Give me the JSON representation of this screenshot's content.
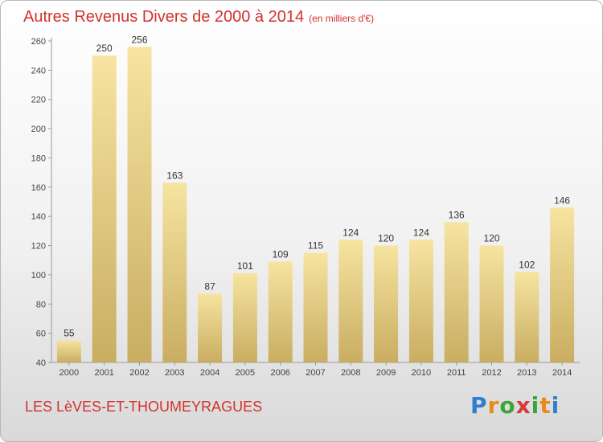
{
  "header": {
    "title": "Autres Revenus Divers de 2000 à 2014",
    "subtitle": "(en milliers d'€)"
  },
  "footer": {
    "commune": "LES LèVES-ET-THOUMEYRAGUES",
    "brand": "Proxiti"
  },
  "colors": {
    "title": "#d2322d",
    "bar_light": "#f6e4a0",
    "bar_dark": "#c9ad62"
  },
  "chart_data": {
    "type": "bar",
    "categories": [
      "2000",
      "2001",
      "2002",
      "2003",
      "2004",
      "2005",
      "2006",
      "2007",
      "2008",
      "2009",
      "2010",
      "2011",
      "2012",
      "2013",
      "2014"
    ],
    "values": [
      55,
      250,
      256,
      163,
      87,
      101,
      109,
      115,
      124,
      120,
      124,
      136,
      120,
      102,
      146
    ],
    "title": "Autres Revenus Divers de 2000 à 2014",
    "ylim": [
      40,
      260
    ],
    "yticks": [
      40,
      60,
      80,
      100,
      120,
      140,
      160,
      180,
      200,
      220,
      240,
      260
    ],
    "grid": false,
    "data_labels": true
  }
}
